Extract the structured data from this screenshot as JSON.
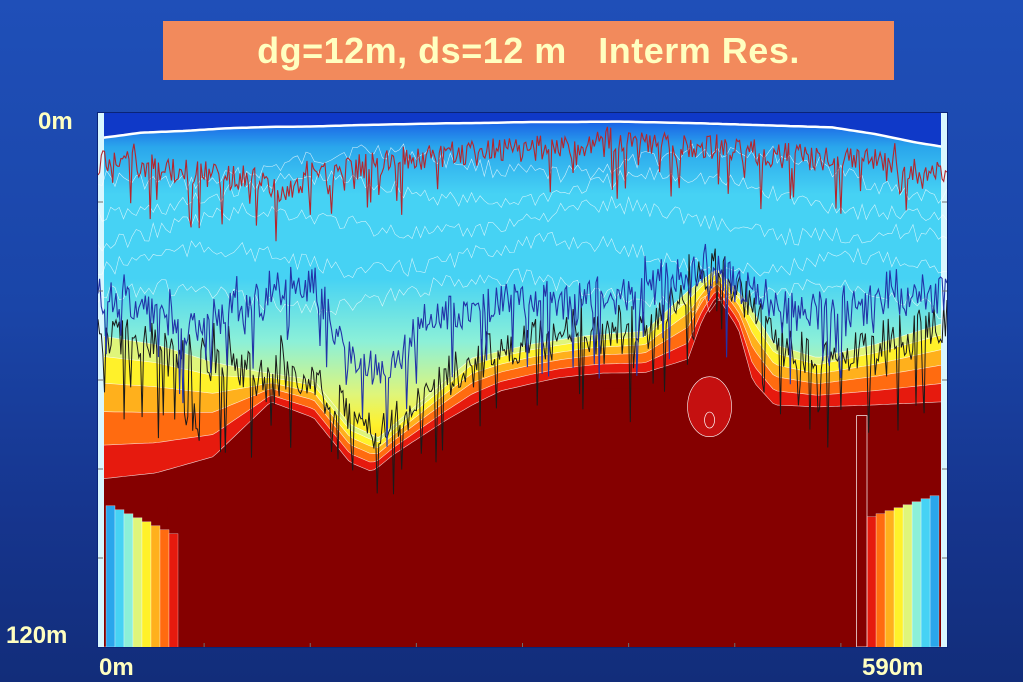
{
  "title": "dg=12m, ds=12 m   Interm Res.",
  "chart_data": {
    "type": "heatmap",
    "title": "dg=12m, ds=12 m   Interm Res.",
    "y_axis": {
      "top_label": "0m",
      "bottom_label": "120m",
      "range": [
        0,
        120
      ],
      "unit": "m",
      "inverted": true
    },
    "x_axis": {
      "left_label": "0m",
      "right_label": "590m",
      "range": [
        0,
        590
      ],
      "unit": "m"
    },
    "colormap": [
      "#0f39c8",
      "#1a5fe6",
      "#2aa6ec",
      "#46d2f4",
      "#8cf0d8",
      "#dff57a",
      "#fff12a",
      "#ffb01c",
      "#ff6b10",
      "#e61a0e",
      "#850000"
    ],
    "surface_depth_m": [
      [
        0,
        5.5
      ],
      [
        30,
        4.2
      ],
      [
        60,
        3.8
      ],
      [
        90,
        3.2
      ],
      [
        120,
        2.9
      ],
      [
        150,
        2.8
      ],
      [
        180,
        2.5
      ],
      [
        210,
        2.3
      ],
      [
        240,
        2.1
      ],
      [
        270,
        2.0
      ],
      [
        300,
        1.8
      ],
      [
        330,
        1.8
      ],
      [
        360,
        1.7
      ],
      [
        390,
        1.9
      ],
      [
        420,
        2.1
      ],
      [
        450,
        2.4
      ],
      [
        480,
        2.7
      ],
      [
        510,
        3.0
      ],
      [
        540,
        4.5
      ],
      [
        570,
        6.5
      ],
      [
        590,
        7.5
      ]
    ],
    "red_core_top_depth_m": [
      [
        0,
        88
      ],
      [
        40,
        86
      ],
      [
        80,
        81
      ],
      [
        120,
        66
      ],
      [
        150,
        70
      ],
      [
        175,
        80
      ],
      [
        190,
        82
      ],
      [
        205,
        78
      ],
      [
        240,
        71
      ],
      [
        280,
        64
      ],
      [
        320,
        61
      ],
      [
        350,
        60
      ],
      [
        380,
        60
      ],
      [
        410,
        58
      ],
      [
        420,
        48
      ],
      [
        430,
        42
      ],
      [
        445,
        50
      ],
      [
        455,
        63
      ],
      [
        470,
        68
      ],
      [
        500,
        68
      ],
      [
        530,
        68
      ],
      [
        560,
        68
      ],
      [
        590,
        68
      ]
    ],
    "yellow_front_depth_m": [
      [
        0,
        50
      ],
      [
        40,
        52
      ],
      [
        80,
        56
      ],
      [
        110,
        58
      ],
      [
        150,
        60
      ],
      [
        175,
        70
      ],
      [
        195,
        73
      ],
      [
        220,
        66
      ],
      [
        260,
        55
      ],
      [
        300,
        52
      ],
      [
        340,
        50
      ],
      [
        380,
        49
      ],
      [
        410,
        40
      ],
      [
        430,
        35
      ],
      [
        450,
        42
      ],
      [
        470,
        52
      ],
      [
        500,
        55
      ],
      [
        540,
        52
      ],
      [
        570,
        49
      ],
      [
        590,
        47
      ]
    ],
    "blue_trace_depth_m": [
      [
        0,
        40
      ],
      [
        30,
        45
      ],
      [
        60,
        48
      ],
      [
        90,
        45
      ],
      [
        120,
        40
      ],
      [
        150,
        38
      ],
      [
        175,
        55
      ],
      [
        200,
        60
      ],
      [
        230,
        45
      ],
      [
        260,
        44
      ],
      [
        300,
        42
      ],
      [
        340,
        42
      ],
      [
        380,
        40
      ],
      [
        410,
        36
      ],
      [
        430,
        35
      ],
      [
        450,
        40
      ],
      [
        480,
        43
      ],
      [
        510,
        45
      ],
      [
        540,
        43
      ],
      [
        570,
        42
      ],
      [
        590,
        41
      ]
    ],
    "red_trace_depth_m": [
      [
        0,
        11
      ],
      [
        40,
        12
      ],
      [
        80,
        14
      ],
      [
        110,
        15
      ],
      [
        130,
        18
      ],
      [
        150,
        14
      ],
      [
        180,
        12
      ],
      [
        220,
        10
      ],
      [
        260,
        9
      ],
      [
        300,
        8
      ],
      [
        340,
        7
      ],
      [
        380,
        7
      ],
      [
        420,
        8
      ],
      [
        460,
        9
      ],
      [
        500,
        10
      ],
      [
        540,
        11
      ],
      [
        570,
        13
      ],
      [
        590,
        14
      ]
    ]
  }
}
